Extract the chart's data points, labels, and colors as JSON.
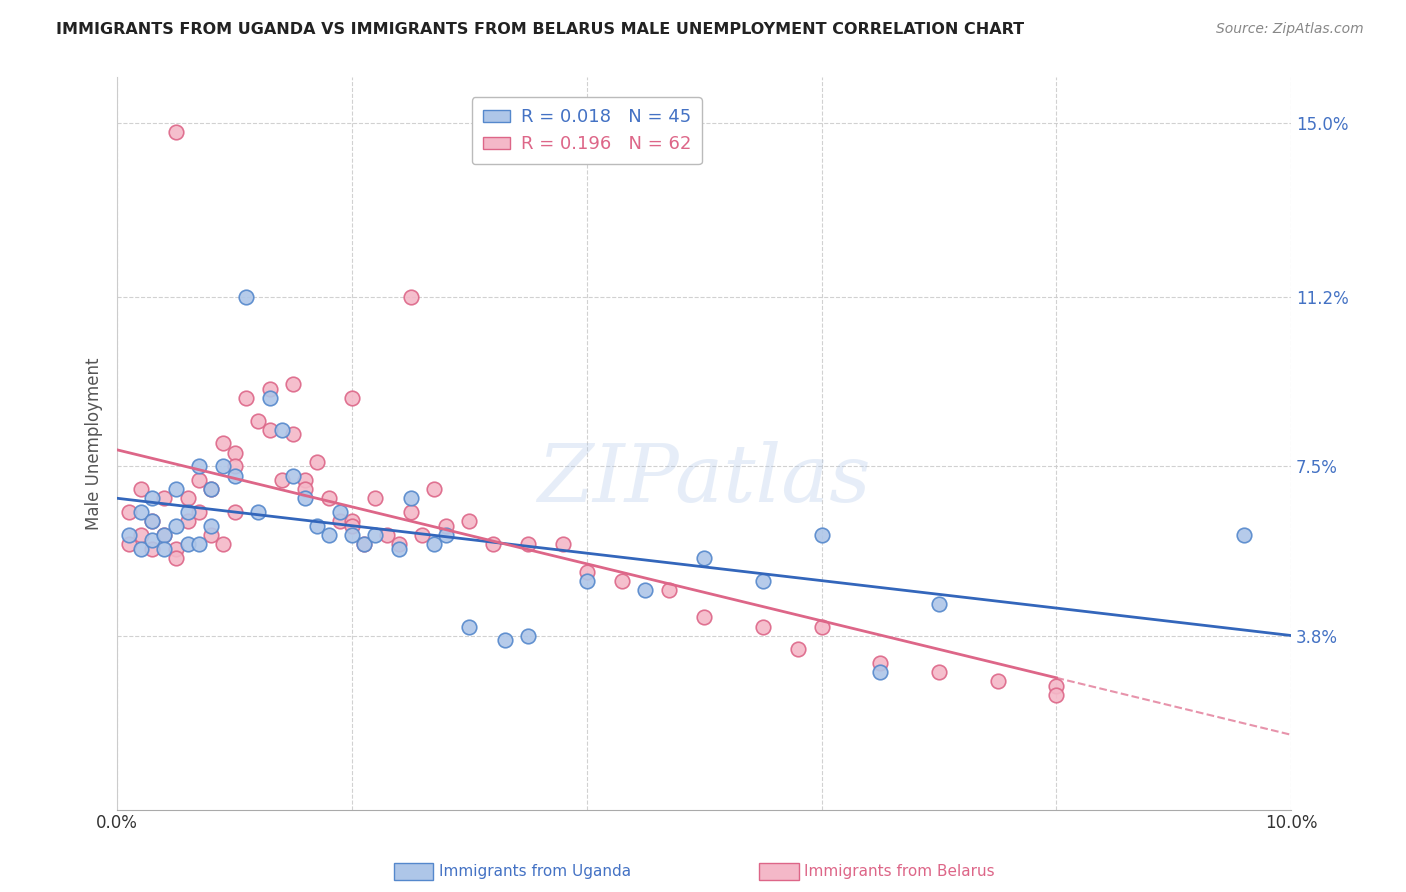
{
  "title": "IMMIGRANTS FROM UGANDA VS IMMIGRANTS FROM BELARUS MALE UNEMPLOYMENT CORRELATION CHART",
  "source": "Source: ZipAtlas.com",
  "ylabel": "Male Unemployment",
  "xlim": [
    0.0,
    0.1
  ],
  "ylim": [
    0.0,
    0.16
  ],
  "yticks": [
    0.0,
    0.038,
    0.075,
    0.112,
    0.15
  ],
  "ytick_labels": [
    "",
    "3.8%",
    "7.5%",
    "11.2%",
    "15.0%"
  ],
  "xticks": [
    0.0,
    0.02,
    0.04,
    0.06,
    0.08,
    0.1
  ],
  "xtick_labels": [
    "0.0%",
    "",
    "",
    "",
    "",
    "10.0%"
  ],
  "uganda_color": "#aec6e8",
  "belarus_color": "#f4b8c8",
  "uganda_edge_color": "#5588cc",
  "belarus_edge_color": "#dd6688",
  "uganda_line_color": "#3366bb",
  "belarus_line_color": "#dd6688",
  "background_color": "#ffffff",
  "grid_color": "#cccccc",
  "marker_size": 110,
  "watermark": "ZIPatlas",
  "uganda_R": "0.018",
  "uganda_N": "45",
  "belarus_R": "0.196",
  "belarus_N": "62",
  "uganda_x": [
    0.001,
    0.002,
    0.002,
    0.003,
    0.003,
    0.003,
    0.004,
    0.004,
    0.005,
    0.005,
    0.006,
    0.006,
    0.007,
    0.007,
    0.008,
    0.008,
    0.009,
    0.01,
    0.011,
    0.012,
    0.013,
    0.014,
    0.015,
    0.016,
    0.017,
    0.018,
    0.019,
    0.02,
    0.021,
    0.022,
    0.024,
    0.025,
    0.027,
    0.028,
    0.03,
    0.033,
    0.035,
    0.04,
    0.045,
    0.05,
    0.055,
    0.06,
    0.065,
    0.07,
    0.096
  ],
  "uganda_y": [
    0.06,
    0.057,
    0.065,
    0.059,
    0.063,
    0.068,
    0.06,
    0.057,
    0.062,
    0.07,
    0.058,
    0.065,
    0.058,
    0.075,
    0.062,
    0.07,
    0.075,
    0.073,
    0.112,
    0.065,
    0.09,
    0.083,
    0.073,
    0.068,
    0.062,
    0.06,
    0.065,
    0.06,
    0.058,
    0.06,
    0.057,
    0.068,
    0.058,
    0.06,
    0.04,
    0.037,
    0.038,
    0.05,
    0.048,
    0.055,
    0.05,
    0.06,
    0.03,
    0.045,
    0.06
  ],
  "belarus_x": [
    0.001,
    0.001,
    0.002,
    0.002,
    0.003,
    0.003,
    0.004,
    0.004,
    0.005,
    0.005,
    0.006,
    0.006,
    0.007,
    0.007,
    0.008,
    0.008,
    0.009,
    0.009,
    0.01,
    0.01,
    0.011,
    0.012,
    0.013,
    0.013,
    0.014,
    0.015,
    0.015,
    0.016,
    0.017,
    0.018,
    0.019,
    0.02,
    0.02,
    0.021,
    0.022,
    0.023,
    0.024,
    0.025,
    0.026,
    0.027,
    0.028,
    0.03,
    0.032,
    0.035,
    0.038,
    0.04,
    0.043,
    0.047,
    0.05,
    0.055,
    0.058,
    0.06,
    0.065,
    0.07,
    0.075,
    0.08,
    0.005,
    0.01,
    0.016,
    0.02,
    0.025,
    0.08
  ],
  "belarus_y": [
    0.058,
    0.065,
    0.06,
    0.07,
    0.057,
    0.063,
    0.06,
    0.068,
    0.148,
    0.057,
    0.063,
    0.068,
    0.065,
    0.072,
    0.06,
    0.07,
    0.058,
    0.08,
    0.065,
    0.078,
    0.09,
    0.085,
    0.083,
    0.092,
    0.072,
    0.082,
    0.093,
    0.072,
    0.076,
    0.068,
    0.063,
    0.063,
    0.09,
    0.058,
    0.068,
    0.06,
    0.058,
    0.065,
    0.06,
    0.07,
    0.062,
    0.063,
    0.058,
    0.058,
    0.058,
    0.052,
    0.05,
    0.048,
    0.042,
    0.04,
    0.035,
    0.04,
    0.032,
    0.03,
    0.028,
    0.027,
    0.055,
    0.075,
    0.07,
    0.062,
    0.112,
    0.025
  ]
}
